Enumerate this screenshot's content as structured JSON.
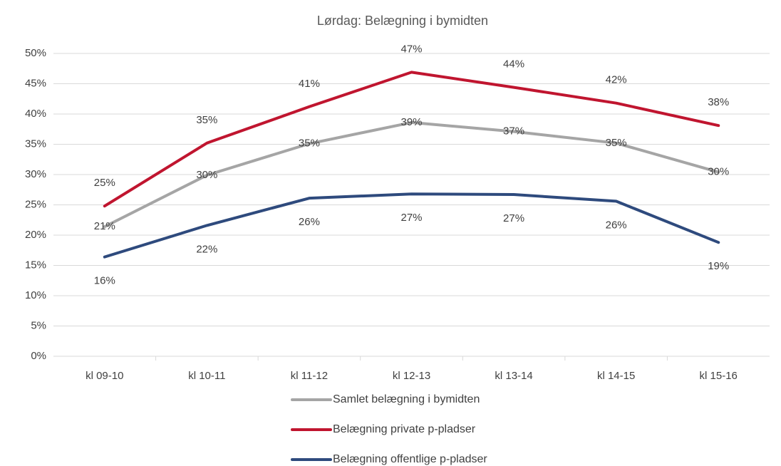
{
  "chart_data": {
    "type": "line",
    "title": "Lørdag: Belægning i bymidten",
    "categories": [
      "kl 09-10",
      "kl 10-11",
      "kl 11-12",
      "kl 12-13",
      "kl 13-14",
      "kl 14-15",
      "kl 15-16"
    ],
    "series": [
      {
        "name": "Samlet belægning i bymidten",
        "color": "#a5a5a5",
        "values": [
          21.4,
          29.9,
          35.1,
          38.6,
          37.1,
          35.2,
          30.4
        ],
        "value_labels": [
          "21%",
          "30%",
          "35%",
          "39%",
          "37%",
          "35%",
          "30%"
        ]
      },
      {
        "name": "Belægning private p-pladser",
        "color": "#c0152f",
        "values": [
          24.8,
          35.2,
          41.2,
          46.9,
          44.4,
          41.8,
          38.1
        ],
        "value_labels": [
          "25%",
          "35%",
          "41%",
          "47%",
          "44%",
          "42%",
          "38%"
        ]
      },
      {
        "name": "Belægning offentlige p-pladser",
        "color": "#2e4a7d",
        "values": [
          16.4,
          21.6,
          26.1,
          26.8,
          26.7,
          25.6,
          18.8
        ],
        "value_labels": [
          "16%",
          "22%",
          "26%",
          "27%",
          "27%",
          "26%",
          "19%"
        ]
      }
    ],
    "ylim": [
      0,
      50
    ],
    "yticks": [
      {
        "value": 0,
        "label": "0%"
      },
      {
        "value": 5,
        "label": "5%"
      },
      {
        "value": 10,
        "label": "10%"
      },
      {
        "value": 15,
        "label": "15%"
      },
      {
        "value": 20,
        "label": "20%"
      },
      {
        "value": 25,
        "label": "25%"
      },
      {
        "value": 30,
        "label": "30%"
      },
      {
        "value": 35,
        "label": "35%"
      },
      {
        "value": 40,
        "label": "40%"
      },
      {
        "value": 45,
        "label": "45%"
      },
      {
        "value": 50,
        "label": "50%"
      }
    ],
    "grid": true,
    "legend": "bottom"
  }
}
